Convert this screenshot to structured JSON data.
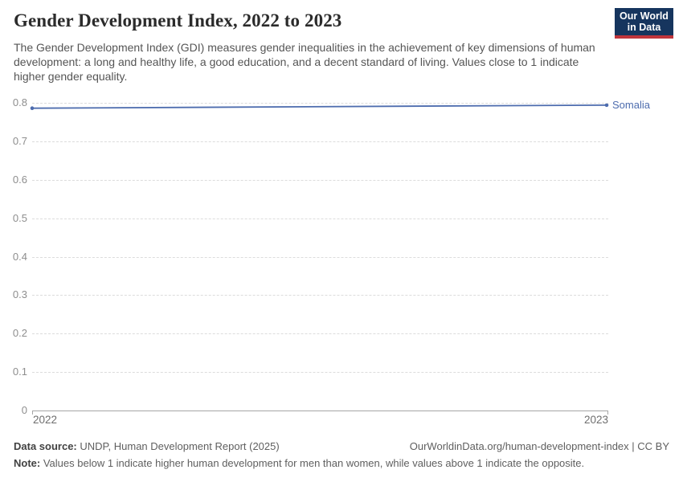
{
  "header": {
    "title": "Gender Development Index, 2022 to 2023",
    "subtitle": "The Gender Development Index (GDI) measures gender inequalities in the achievement of key dimensions of human development: a long and healthy life, a good education, and a decent standard of living. Values close to 1 indicate higher gender equality.",
    "logo": {
      "line1": "Our World",
      "line2": "in Data",
      "bg_color": "#16355e",
      "accent_color": "#c0353c"
    }
  },
  "chart_data": {
    "type": "line",
    "title": "Gender Development Index, 2022 to 2023",
    "x": [
      2022,
      2023
    ],
    "x_tick_labels": [
      "2022",
      "2023"
    ],
    "series": [
      {
        "name": "Somalia",
        "values": [
          0.786,
          0.794
        ],
        "color": "#4d6cae"
      }
    ],
    "ylim": [
      0,
      0.8
    ],
    "y_ticks": [
      0,
      0.1,
      0.2,
      0.3,
      0.4,
      0.5,
      0.6,
      0.7,
      0.8
    ],
    "y_tick_labels": [
      "0",
      "0.1",
      "0.2",
      "0.3",
      "0.4",
      "0.5",
      "0.6",
      "0.7",
      "0.8"
    ],
    "grid": "horizontal-dashed",
    "legend": "inline-end-label"
  },
  "footer": {
    "data_source_label": "Data source:",
    "data_source": "UNDP, Human Development Report (2025)",
    "citation": "OurWorldinData.org/human-development-index | CC BY",
    "note_label": "Note:",
    "note": "Values below 1 indicate higher human development for men than women, while values above 1 indicate the opposite."
  }
}
